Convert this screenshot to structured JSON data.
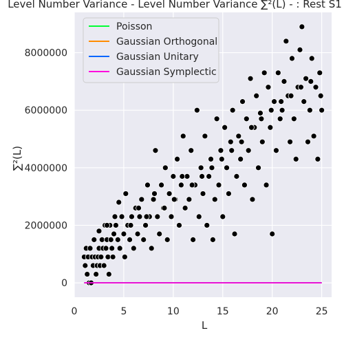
{
  "chart_data": {
    "type": "scatter",
    "title": "Level Number Variance - Level Number Variance ∑²(L) - : Rest S1",
    "xlabel": "L",
    "ylabel": "∑²(L)",
    "xlim": [
      0,
      26
    ],
    "ylim": [
      -500000,
      9400000
    ],
    "x_ticks": [
      0,
      5,
      10,
      15,
      20,
      25
    ],
    "y_ticks": [
      0,
      2000000,
      4000000,
      6000000,
      8000000
    ],
    "x_tick_labels": [
      "0",
      "5",
      "10",
      "15",
      "20",
      "25"
    ],
    "y_tick_labels": [
      "0",
      "2000000",
      "4000000",
      "6000000",
      "8000000"
    ],
    "grid": true,
    "background": "#eaeaf2",
    "legend_position": "top-left",
    "series": [
      {
        "name": "Poisson",
        "color": "#00ff33",
        "x": [
          1,
          25
        ],
        "y": [
          0,
          0
        ]
      },
      {
        "name": "Gaussian Orthogonal",
        "color": "#ff8c00",
        "x": [
          1,
          25
        ],
        "y": [
          0,
          0
        ]
      },
      {
        "name": "Gaussian Unitary",
        "color": "#0066ff",
        "x": [
          1,
          25
        ],
        "y": [
          0,
          0
        ]
      },
      {
        "name": "Gaussian Symplectic",
        "color": "#ff00dd",
        "x": [
          1,
          25
        ],
        "y": [
          0,
          0
        ]
      }
    ],
    "scatter": {
      "color": "#000000",
      "edge_color": "#ffffff",
      "points": [
        [
          1.0,
          900000
        ],
        [
          1.1,
          600000
        ],
        [
          1.2,
          1200000
        ],
        [
          1.3,
          300000
        ],
        [
          1.4,
          900000
        ],
        [
          1.5,
          0
        ],
        [
          1.6,
          1200000
        ],
        [
          1.7,
          0
        ],
        [
          1.8,
          900000
        ],
        [
          1.9,
          600000
        ],
        [
          2.0,
          1500000
        ],
        [
          2.1,
          900000
        ],
        [
          2.2,
          300000
        ],
        [
          2.3,
          600000
        ],
        [
          2.4,
          900000
        ],
        [
          2.5,
          1200000
        ],
        [
          2.6,
          600000
        ],
        [
          2.7,
          900000
        ],
        [
          2.8,
          1500000
        ],
        [
          2.9,
          1200000
        ],
        [
          3.0,
          600000
        ],
        [
          3.1,
          2000000
        ],
        [
          3.2,
          1200000
        ],
        [
          3.3,
          1500000
        ],
        [
          3.4,
          900000
        ],
        [
          3.5,
          300000
        ],
        [
          3.6,
          2000000
        ],
        [
          3.7,
          1500000
        ],
        [
          3.8,
          1200000
        ],
        [
          3.9,
          900000
        ],
        [
          4.0,
          1700000
        ],
        [
          4.2,
          2000000
        ],
        [
          4.4,
          1500000
        ],
        [
          4.5,
          2800000
        ],
        [
          4.6,
          1200000
        ],
        [
          4.8,
          2300000
        ],
        [
          5.0,
          1700000
        ],
        [
          5.1,
          900000
        ],
        [
          5.2,
          3100000
        ],
        [
          5.4,
          2000000
        ],
        [
          5.6,
          1500000
        ],
        [
          5.8,
          2300000
        ],
        [
          6.0,
          1200000
        ],
        [
          6.2,
          2600000
        ],
        [
          6.4,
          1700000
        ],
        [
          6.6,
          2300000
        ],
        [
          6.8,
          2900000
        ],
        [
          7.0,
          1500000
        ],
        [
          7.2,
          2000000
        ],
        [
          7.4,
          3400000
        ],
        [
          7.6,
          2300000
        ],
        [
          7.8,
          1200000
        ],
        [
          8.0,
          2900000
        ],
        [
          8.2,
          4600000
        ],
        [
          8.4,
          2300000
        ],
        [
          8.6,
          1700000
        ],
        [
          8.8,
          3400000
        ],
        [
          9.0,
          2600000
        ],
        [
          9.2,
          4000000
        ],
        [
          9.4,
          1500000
        ],
        [
          9.6,
          3100000
        ],
        [
          9.8,
          2300000
        ],
        [
          10.0,
          3700000
        ],
        [
          10.2,
          2900000
        ],
        [
          10.4,
          4300000
        ],
        [
          10.6,
          2000000
        ],
        [
          10.8,
          3400000
        ],
        [
          11.0,
          5100000
        ],
        [
          11.2,
          2600000
        ],
        [
          11.4,
          3700000
        ],
        [
          11.6,
          2900000
        ],
        [
          11.8,
          4600000
        ],
        [
          12.0,
          1500000
        ],
        [
          12.2,
          3400000
        ],
        [
          12.4,
          6000000
        ],
        [
          12.6,
          2300000
        ],
        [
          12.8,
          4000000
        ],
        [
          13.0,
          3100000
        ],
        [
          13.2,
          5100000
        ],
        [
          13.4,
          2000000
        ],
        [
          13.6,
          3700000
        ],
        [
          13.8,
          4300000
        ],
        [
          14.0,
          1500000
        ],
        [
          14.2,
          2900000
        ],
        [
          14.4,
          5700000
        ],
        [
          14.6,
          3400000
        ],
        [
          14.8,
          4600000
        ],
        [
          15.0,
          2300000
        ],
        [
          15.2,
          5400000
        ],
        [
          15.4,
          4000000
        ],
        [
          15.6,
          3100000
        ],
        [
          15.8,
          4900000
        ],
        [
          16.0,
          6000000
        ],
        [
          16.2,
          1700000
        ],
        [
          16.4,
          3700000
        ],
        [
          16.6,
          5100000
        ],
        [
          16.8,
          4300000
        ],
        [
          17.0,
          6300000
        ],
        [
          17.2,
          3400000
        ],
        [
          17.4,
          5700000
        ],
        [
          17.6,
          4600000
        ],
        [
          17.8,
          7100000
        ],
        [
          18.0,
          2900000
        ],
        [
          18.2,
          5400000
        ],
        [
          18.4,
          6500000
        ],
        [
          18.6,
          4000000
        ],
        [
          18.8,
          5900000
        ],
        [
          19.0,
          4900000
        ],
        [
          19.2,
          7300000
        ],
        [
          19.4,
          3400000
        ],
        [
          19.6,
          6800000
        ],
        [
          19.8,
          5400000
        ],
        [
          20.0,
          1700000
        ],
        [
          20.2,
          6300000
        ],
        [
          20.4,
          4600000
        ],
        [
          20.6,
          7300000
        ],
        [
          20.8,
          5700000
        ],
        [
          21.0,
          6000000
        ],
        [
          21.2,
          7000000
        ],
        [
          21.4,
          8400000
        ],
        [
          21.6,
          6500000
        ],
        [
          21.8,
          4900000
        ],
        [
          22.0,
          7800000
        ],
        [
          22.2,
          5700000
        ],
        [
          22.4,
          4300000
        ],
        [
          22.6,
          6800000
        ],
        [
          22.8,
          8100000
        ],
        [
          23.0,
          8900000
        ],
        [
          23.2,
          6300000
        ],
        [
          23.4,
          7100000
        ],
        [
          23.6,
          4900000
        ],
        [
          23.8,
          6000000
        ],
        [
          24.0,
          7800000
        ],
        [
          24.2,
          5100000
        ],
        [
          24.4,
          6800000
        ],
        [
          24.6,
          4300000
        ],
        [
          24.8,
          7300000
        ],
        [
          25.0,
          6000000
        ],
        [
          2.5,
          1800000
        ],
        [
          3.3,
          2000000
        ],
        [
          4.1,
          2300000
        ],
        [
          5.7,
          2000000
        ],
        [
          6.5,
          2600000
        ],
        [
          7.3,
          2300000
        ],
        [
          8.1,
          3100000
        ],
        [
          9.1,
          2600000
        ],
        [
          10.1,
          2900000
        ],
        [
          10.9,
          3700000
        ],
        [
          11.9,
          3400000
        ],
        [
          12.9,
          3700000
        ],
        [
          13.9,
          4000000
        ],
        [
          14.9,
          4300000
        ],
        [
          15.9,
          4600000
        ],
        [
          16.9,
          4900000
        ],
        [
          17.9,
          5400000
        ],
        [
          18.9,
          5700000
        ],
        [
          19.9,
          6000000
        ],
        [
          20.9,
          6300000
        ],
        [
          21.9,
          6500000
        ],
        [
          22.9,
          6800000
        ],
        [
          23.9,
          7000000
        ],
        [
          24.9,
          6500000
        ]
      ]
    }
  }
}
